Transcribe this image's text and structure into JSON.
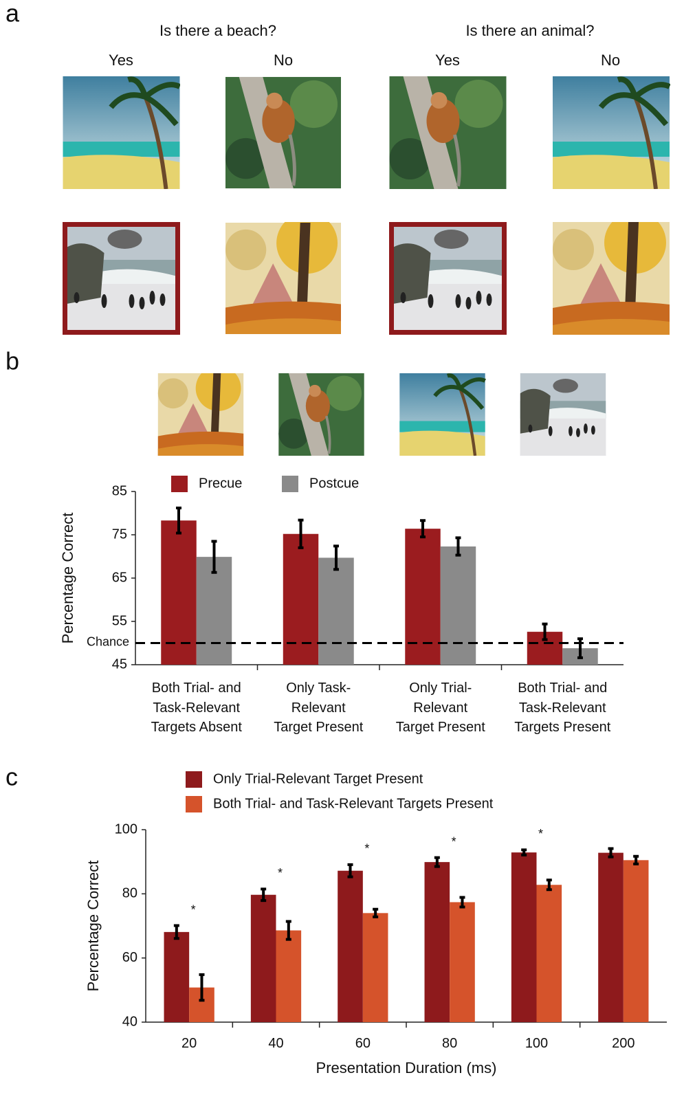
{
  "panel_labels": [
    "a",
    "b",
    "c"
  ],
  "panel_a": {
    "questions": [
      {
        "title": "Is there a beach?",
        "answers": [
          "Yes",
          "No"
        ]
      },
      {
        "title": "Is there an animal?",
        "answers": [
          "Yes",
          "No"
        ]
      }
    ]
  },
  "chart_data": [
    {
      "type": "bar",
      "ylabel": "Percentage Correct",
      "categories": [
        "Both Trial- and\nTask-Relevant\nTargets Absent",
        "Only Task-\nRelevant\nTarget Present",
        "Only Trial-\nRelevant\nTarget Present",
        "Both Trial- and\nTask-Relevant\nTargets Present"
      ],
      "series": [
        {
          "name": "Precue",
          "color": "#9b1c1f",
          "values": [
            78.3,
            75.2,
            76.4,
            52.6
          ],
          "errors": [
            2.9,
            3.2,
            1.9,
            1.8
          ]
        },
        {
          "name": "Postcue",
          "color": "#8a8a8a",
          "values": [
            69.9,
            69.7,
            72.3,
            48.8
          ],
          "errors": [
            3.6,
            2.7,
            2.0,
            2.2
          ]
        }
      ],
      "ylim": [
        45,
        85
      ],
      "yticks": [
        45,
        55,
        65,
        75,
        85
      ],
      "reference_line": {
        "value": 50,
        "label": "Chance"
      }
    },
    {
      "type": "bar",
      "ylabel": "Percentage Correct",
      "xlabel": "Presentation Duration (ms)",
      "categories": [
        "20",
        "40",
        "60",
        "80",
        "100",
        "200"
      ],
      "series": [
        {
          "name": "Only Trial-Relevant Target Present",
          "color": "#8e1a1c",
          "values": [
            68.1,
            79.7,
            87.2,
            89.9,
            92.9,
            92.8
          ],
          "errors": [
            2.0,
            1.8,
            1.9,
            1.4,
            0.8,
            1.3
          ]
        },
        {
          "name": "Both Trial- and Task-Relevant Targets Present",
          "color": "#d5532b",
          "values": [
            50.8,
            68.6,
            74.0,
            77.4,
            82.8,
            90.5
          ],
          "errors": [
            4.0,
            2.8,
            1.2,
            1.5,
            1.5,
            1.2
          ]
        }
      ],
      "annotations": [
        "*",
        "*",
        "*",
        "*",
        "*",
        null
      ],
      "ylim": [
        40,
        100
      ],
      "yticks": [
        40,
        60,
        80,
        100
      ]
    }
  ]
}
